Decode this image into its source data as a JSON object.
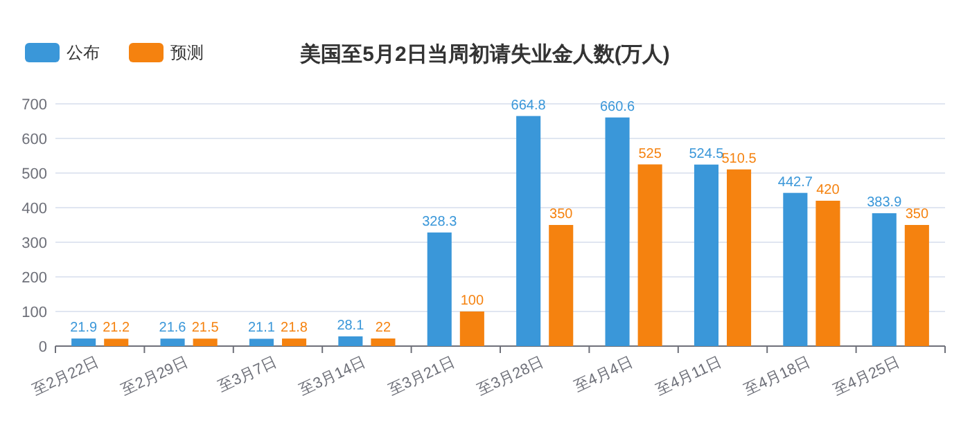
{
  "chart_data": {
    "type": "bar",
    "title": "美国至5月2日当周初请失业金人数(万人)",
    "categories": [
      "至2月22日",
      "至2月29日",
      "至3月7日",
      "至3月14日",
      "至3月21日",
      "至3月28日",
      "至4月4日",
      "至4月11日",
      "至4月18日",
      "至4月25日"
    ],
    "series": [
      {
        "name": "公布",
        "color": "#3a97d9",
        "values": [
          21.9,
          21.6,
          21.1,
          28.1,
          328.3,
          664.8,
          660.6,
          524.5,
          442.7,
          383.9
        ]
      },
      {
        "name": "预测",
        "color": "#f5820f",
        "values": [
          21.2,
          21.5,
          21.8,
          22,
          100,
          350,
          525,
          510.5,
          420,
          350
        ]
      }
    ],
    "ylim": [
      0,
      700
    ],
    "yticks": [
      0,
      100,
      200,
      300,
      400,
      500,
      600,
      700
    ],
    "grid": "y",
    "legend": "top left",
    "data_labels": true
  }
}
